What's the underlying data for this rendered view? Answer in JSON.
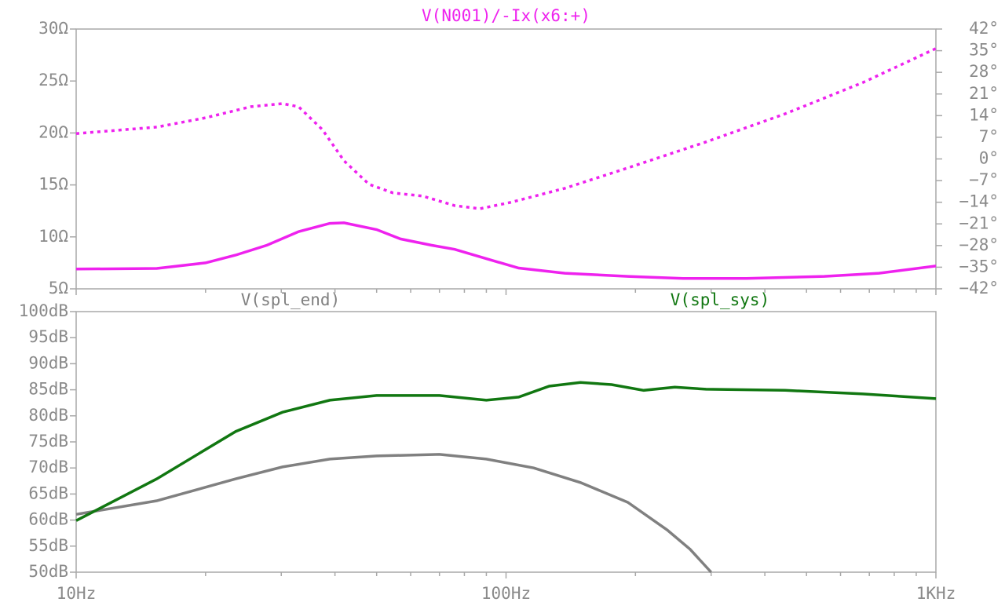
{
  "chart_data": [
    {
      "type": "line",
      "title": "V(N001)/-Ix(x6:+)",
      "log_x": true,
      "xlim": [
        10,
        1000
      ],
      "xticks": [
        10,
        100,
        1000
      ],
      "minor_xticks": [
        20,
        30,
        40,
        50,
        60,
        70,
        80,
        90,
        200,
        300,
        400,
        500,
        600,
        700,
        800,
        900
      ],
      "ylim": [
        5,
        30
      ],
      "yticks": [
        {
          "value": 5,
          "label": "5Ω"
        },
        {
          "value": 10,
          "label": "10Ω"
        },
        {
          "value": 15,
          "label": "15Ω"
        },
        {
          "value": 20,
          "label": "20Ω"
        },
        {
          "value": 25,
          "label": "25Ω"
        },
        {
          "value": 30,
          "label": "30Ω"
        }
      ],
      "y2lim": [
        -42,
        42
      ],
      "y2ticks": [
        {
          "value": -42,
          "label": "−42°"
        },
        {
          "value": -35,
          "label": "−35°"
        },
        {
          "value": -28,
          "label": "−28°"
        },
        {
          "value": -21,
          "label": "−21°"
        },
        {
          "value": -14,
          "label": "−14°"
        },
        {
          "value": -7,
          "label": "−7°"
        },
        {
          "value": 0,
          "label": "0°"
        },
        {
          "value": 7,
          "label": "7°"
        },
        {
          "value": 14,
          "label": "14°"
        },
        {
          "value": 21,
          "label": "21°"
        },
        {
          "value": 28,
          "label": "28°"
        },
        {
          "value": 35,
          "label": "35°"
        },
        {
          "value": 42,
          "label": "42°"
        }
      ],
      "series": [
        {
          "color": "#ee22ee",
          "line_style": "solid",
          "x": [
            10,
            15.4,
            20,
            23.5,
            27.8,
            32.9,
            38.9,
            42,
            50,
            56.8,
            67,
            76,
            90,
            107,
            137,
            192,
            258,
            363,
            550,
            737,
            1000
          ],
          "values": [
            6.9,
            6.96,
            7.5,
            8.25,
            9.2,
            10.5,
            11.3,
            11.35,
            10.7,
            9.8,
            9.2,
            8.8,
            7.9,
            7.0,
            6.5,
            6.2,
            6.0,
            6.0,
            6.2,
            6.5,
            7.2
          ]
        },
        {
          "color": "#ee22ee",
          "line_style": "dotted",
          "axis": "y2",
          "x": [
            10,
            15.4,
            20,
            25.5,
            30.2,
            32.9,
            37.4,
            42,
            48,
            54.6,
            64,
            76,
            86.9,
            102,
            137,
            192,
            292,
            446,
            676,
            1000
          ],
          "values": [
            8.2,
            10.3,
            13.3,
            16.9,
            17.9,
            16.9,
            9.5,
            -0.6,
            -8.2,
            -11,
            -12,
            -15.1,
            -16.1,
            -14.1,
            -9.5,
            -2.9,
            5.5,
            14.6,
            24.7,
            35.7
          ]
        }
      ]
    },
    {
      "type": "line",
      "log_x": true,
      "xlim": [
        10,
        1000
      ],
      "xticks": [
        {
          "value": 10,
          "label": "10Hz"
        },
        {
          "value": 100,
          "label": "100Hz"
        },
        {
          "value": 1000,
          "label": "1KHz"
        }
      ],
      "minor_xticks": [
        20,
        30,
        40,
        50,
        60,
        70,
        80,
        90,
        200,
        300,
        400,
        500,
        600,
        700,
        800,
        900
      ],
      "ylim": [
        50,
        100
      ],
      "yticks": [
        {
          "value": 50,
          "label": "50dB"
        },
        {
          "value": 55,
          "label": "55dB"
        },
        {
          "value": 60,
          "label": "60dB"
        },
        {
          "value": 65,
          "label": "65dB"
        },
        {
          "value": 70,
          "label": "70dB"
        },
        {
          "value": 75,
          "label": "75dB"
        },
        {
          "value": 80,
          "label": "80dB"
        },
        {
          "value": 85,
          "label": "85dB"
        },
        {
          "value": 90,
          "label": "90dB"
        },
        {
          "value": 95,
          "label": "95dB"
        },
        {
          "value": 100,
          "label": "100dB"
        }
      ],
      "series": [
        {
          "name": "V(spl_end)",
          "color": "#808080",
          "line_style": "solid",
          "x": [
            10,
            15.4,
            23.5,
            30.2,
            38.9,
            50,
            70,
            90,
            116,
            149,
            192,
            237,
            268,
            300
          ],
          "values": [
            61.1,
            63.7,
            67.9,
            70.2,
            71.7,
            72.3,
            72.6,
            71.7,
            70,
            67.2,
            63.4,
            58.1,
            54.4,
            50
          ]
        },
        {
          "name": "V(spl_sys)",
          "color": "#117711",
          "line_style": "solid",
          "x": [
            10,
            15.4,
            23.5,
            30.2,
            38.9,
            50,
            70,
            90,
            107,
            126,
            149,
            176,
            209,
            247,
            292,
            446,
            676,
            1000
          ],
          "values": [
            59.9,
            67.9,
            77,
            80.7,
            83,
            83.9,
            83.9,
            83,
            83.6,
            85.7,
            86.4,
            86,
            84.9,
            85.5,
            85.1,
            84.9,
            84.2,
            83.3
          ]
        }
      ]
    }
  ]
}
